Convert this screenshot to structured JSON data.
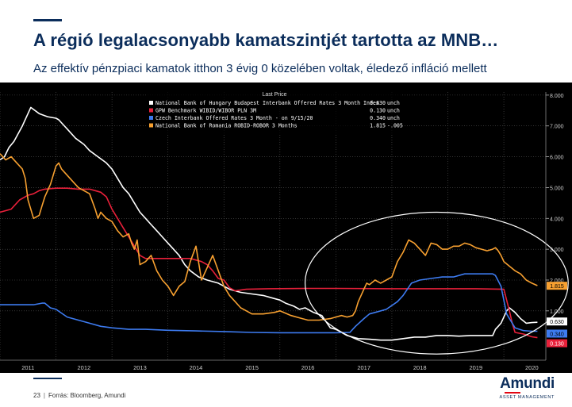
{
  "slide": {
    "title": "A régió legalacsonyabb kamatszintjét tartotta az MNB…",
    "subtitle": "Az effektív pénzpiaci kamatok itthon 3 évig 0 közelében voltak, éledező infláció mellett",
    "page_number": "23",
    "source": "Forrás: Bloomberg, Amundi",
    "logo": {
      "name": "Amundi",
      "tagline": "ASSET MANAGEMENT"
    }
  },
  "colors": {
    "brand": "#0b2d5b",
    "chart_bg": "#000000",
    "grid": "#555555",
    "series_white": "#ffffff",
    "series_red": "#e8203a",
    "series_blue": "#3d7bf0",
    "series_orange": "#f7a030"
  },
  "chart_data": {
    "type": "line",
    "title": "",
    "xlabel": "",
    "ylabel": "",
    "legend": {
      "heading": "Last Price",
      "placement": "top-center",
      "entries": [
        {
          "label": "National Bank of Hungary Budapest Interbank Offered Rates 3 Month Index",
          "value": "0.630",
          "unit": "unch",
          "color": "#ffffff"
        },
        {
          "label": "GPW Benchmark WIBID/WIBOR PLN 3M",
          "value": "0.130",
          "unit": "unch",
          "color": "#e8203a"
        },
        {
          "label": "Czech Interbank Offered Rates 3 Month -  on 9/15/20",
          "value": "0.340",
          "unit": "unch",
          "color": "#3d7bf0"
        },
        {
          "label": "National Bank of Romania ROBID-ROBOR 3 Months",
          "value": "1.815",
          "unit": "-.005",
          "color": "#f7a030"
        }
      ]
    },
    "x_ticks": [
      "2011",
      "2012",
      "2013",
      "2014",
      "2015",
      "2016",
      "2017",
      "2018",
      "2019",
      "2020"
    ],
    "xlim": [
      2011.0,
      2020.75
    ],
    "y_ticks": [
      "1.000",
      "2.000",
      "3.000",
      "4.000",
      "5.000",
      "6.000",
      "7.000",
      "8.000"
    ],
    "ylim": [
      -0.6,
      8.1
    ],
    "grid": true,
    "right_axis": true,
    "last_value_tags": [
      {
        "text": "1.815",
        "value": 1.815,
        "bg": "#f7a030",
        "fg": "#000000"
      },
      {
        "text": "0.630",
        "value": 0.63,
        "bg": "#ffffff",
        "fg": "#000000"
      },
      {
        "text": "0.340",
        "value": 0.34,
        "bg": "#3d7bf0",
        "fg": "#000000"
      },
      {
        "text": "0.130",
        "value": 0.13,
        "bg": "#e8203a",
        "fg": "#ffffff"
      }
    ],
    "highlight_ellipse": {
      "cx": 2018.8,
      "cy": 1.9,
      "rx": 2.35,
      "ry": 2.3
    },
    "series": [
      {
        "name": "National Bank of Hungary Budapest Interbank Offered Rates 3 Month Index",
        "color": "#ffffff",
        "x": [
          2011.0,
          2011.08,
          2011.16,
          2011.25,
          2011.4,
          2011.55,
          2011.7,
          2011.85,
          2012.0,
          2012.05,
          2012.1,
          2012.2,
          2012.35,
          2012.5,
          2012.6,
          2012.75,
          2012.9,
          2013.0,
          2013.1,
          2013.2,
          2013.3,
          2013.4,
          2013.5,
          2013.6,
          2013.7,
          2013.8,
          2013.9,
          2014.0,
          2014.1,
          2014.2,
          2014.3,
          2014.4,
          2014.55,
          2014.7,
          2014.9,
          2015.1,
          2015.3,
          2015.5,
          2015.7,
          2015.9,
          2016.0,
          2016.1,
          2016.25,
          2016.35,
          2016.45,
          2016.6,
          2016.75,
          2016.9,
          2017.0,
          2017.2,
          2017.4,
          2017.6,
          2017.8,
          2018.0,
          2018.2,
          2018.4,
          2018.6,
          2018.8,
          2019.0,
          2019.2,
          2019.4,
          2019.6,
          2019.8,
          2019.85,
          2019.9,
          2019.95,
          2020.0,
          2020.05,
          2020.1,
          2020.2,
          2020.3,
          2020.4,
          2020.5,
          2020.6
        ],
        "y": [
          5.9,
          6.0,
          6.3,
          6.5,
          7.0,
          7.6,
          7.4,
          7.3,
          7.25,
          7.2,
          7.1,
          6.9,
          6.6,
          6.4,
          6.2,
          6.0,
          5.8,
          5.6,
          5.3,
          5.0,
          4.8,
          4.5,
          4.2,
          4.0,
          3.8,
          3.6,
          3.4,
          3.2,
          3.0,
          2.8,
          2.5,
          2.3,
          2.1,
          2.0,
          1.9,
          1.7,
          1.6,
          1.55,
          1.5,
          1.4,
          1.35,
          1.25,
          1.15,
          1.05,
          1.1,
          0.95,
          0.85,
          0.45,
          0.4,
          0.2,
          0.1,
          0.08,
          0.05,
          0.05,
          0.1,
          0.15,
          0.15,
          0.2,
          0.2,
          0.18,
          0.2,
          0.2,
          0.2,
          0.4,
          0.5,
          0.6,
          0.8,
          1.0,
          1.1,
          0.95,
          0.75,
          0.6,
          0.62,
          0.63
        ]
      },
      {
        "name": "GPW Benchmark WIBID/WIBOR PLN 3M",
        "color": "#e8203a",
        "x": [
          2011.0,
          2011.2,
          2011.35,
          2011.5,
          2011.6,
          2011.7,
          2011.8,
          2012.0,
          2012.2,
          2012.4,
          2012.6,
          2012.7,
          2012.8,
          2012.9,
          2013.0,
          2013.1,
          2013.2,
          2013.3,
          2013.4,
          2013.5,
          2013.6,
          2013.8,
          2014.0,
          2014.2,
          2014.4,
          2014.6,
          2014.7,
          2014.8,
          2014.9,
          2015.0,
          2015.1,
          2015.2,
          2015.4,
          2015.8,
          2016.5,
          2017.0,
          2018.0,
          2019.0,
          2019.5,
          2019.8,
          2020.0,
          2020.1,
          2020.15,
          2020.2,
          2020.35,
          2020.5,
          2020.6
        ],
        "y": [
          4.2,
          4.3,
          4.6,
          4.75,
          4.8,
          4.9,
          4.95,
          4.98,
          4.98,
          4.95,
          4.95,
          4.9,
          4.85,
          4.7,
          4.3,
          4.0,
          3.7,
          3.4,
          3.1,
          2.8,
          2.7,
          2.7,
          2.7,
          2.7,
          2.7,
          2.6,
          2.5,
          2.3,
          2.05,
          2.0,
          1.75,
          1.65,
          1.7,
          1.72,
          1.73,
          1.73,
          1.72,
          1.72,
          1.72,
          1.71,
          1.7,
          1.0,
          0.6,
          0.3,
          0.25,
          0.16,
          0.13
        ]
      },
      {
        "name": "Czech Interbank Offered Rates 3 Month -  on 9/15/20",
        "color": "#3d7bf0",
        "x": [
          2011.0,
          2011.3,
          2011.6,
          2011.75,
          2011.8,
          2011.9,
          2012.0,
          2012.2,
          2012.4,
          2012.6,
          2012.8,
          2013.0,
          2013.3,
          2013.6,
          2014.0,
          2014.5,
          2015.0,
          2015.5,
          2016.0,
          2016.5,
          2017.0,
          2017.25,
          2017.35,
          2017.5,
          2017.6,
          2017.7,
          2017.9,
          2018.1,
          2018.2,
          2018.35,
          2018.5,
          2018.7,
          2018.9,
          2019.1,
          2019.3,
          2019.5,
          2019.7,
          2019.8,
          2019.85,
          2019.95,
          2020.05,
          2020.2,
          2020.35,
          2020.5,
          2020.6
        ],
        "y": [
          1.2,
          1.2,
          1.2,
          1.25,
          1.25,
          1.1,
          1.05,
          0.8,
          0.7,
          0.6,
          0.5,
          0.45,
          0.4,
          0.4,
          0.37,
          0.35,
          0.33,
          0.3,
          0.29,
          0.29,
          0.29,
          0.3,
          0.5,
          0.75,
          0.9,
          0.95,
          1.05,
          1.3,
          1.5,
          1.9,
          2.0,
          2.05,
          2.1,
          2.1,
          2.2,
          2.2,
          2.2,
          2.2,
          2.15,
          1.8,
          0.9,
          0.45,
          0.36,
          0.34,
          0.34
        ]
      },
      {
        "name": "National Bank of Romania ROBID-ROBOR 3 Months",
        "color": "#f7a030",
        "x": [
          2011.0,
          2011.1,
          2011.2,
          2011.3,
          2011.4,
          2011.45,
          2011.5,
          2011.55,
          2011.6,
          2011.7,
          2011.75,
          2011.8,
          2011.9,
          2012.0,
          2012.05,
          2012.1,
          2012.2,
          2012.3,
          2012.4,
          2012.5,
          2012.6,
          2012.7,
          2012.75,
          2012.8,
          2012.9,
          2013.0,
          2013.1,
          2013.2,
          2013.3,
          2013.35,
          2013.4,
          2013.45,
          2013.5,
          2013.6,
          2013.7,
          2013.8,
          2013.9,
          2014.0,
          2014.1,
          2014.2,
          2014.3,
          2014.4,
          2014.5,
          2014.6,
          2014.7,
          2014.8,
          2014.9,
          2015.0,
          2015.1,
          2015.2,
          2015.3,
          2015.4,
          2015.5,
          2015.7,
          2015.9,
          2016.0,
          2016.2,
          2016.4,
          2016.5,
          2016.7,
          2016.9,
          2017.0,
          2017.1,
          2017.2,
          2017.3,
          2017.35,
          2017.4,
          2017.5,
          2017.55,
          2017.6,
          2017.7,
          2017.8,
          2017.9,
          2018.0,
          2018.1,
          2018.2,
          2018.3,
          2018.4,
          2018.5,
          2018.6,
          2018.7,
          2018.8,
          2018.9,
          2019.0,
          2019.1,
          2019.2,
          2019.3,
          2019.4,
          2019.5,
          2019.6,
          2019.7,
          2019.8,
          2019.85,
          2019.9,
          2019.95,
          2020.0,
          2020.1,
          2020.2,
          2020.3,
          2020.4,
          2020.5,
          2020.6
        ],
        "y": [
          6.1,
          5.9,
          6.0,
          5.8,
          5.6,
          5.3,
          4.6,
          4.3,
          4.0,
          4.1,
          4.4,
          4.7,
          5.1,
          5.7,
          5.8,
          5.6,
          5.4,
          5.2,
          5.0,
          4.9,
          4.8,
          4.3,
          4.0,
          4.2,
          4.0,
          3.9,
          3.6,
          3.4,
          3.5,
          3.2,
          3.0,
          3.3,
          2.5,
          2.6,
          2.8,
          2.3,
          2.0,
          1.8,
          1.5,
          1.8,
          1.95,
          2.6,
          3.1,
          2.0,
          2.4,
          2.8,
          2.3,
          1.8,
          1.5,
          1.3,
          1.1,
          1.0,
          0.9,
          0.9,
          0.95,
          1.0,
          0.85,
          0.75,
          0.7,
          0.7,
          0.75,
          0.8,
          0.85,
          0.8,
          0.85,
          1.0,
          1.3,
          1.7,
          1.9,
          1.85,
          2.0,
          1.9,
          2.0,
          2.1,
          2.6,
          2.9,
          3.3,
          3.2,
          3.0,
          2.8,
          3.2,
          3.15,
          3.0,
          3.0,
          3.1,
          3.1,
          3.2,
          3.15,
          3.05,
          3.0,
          2.95,
          3.0,
          3.05,
          2.95,
          2.8,
          2.6,
          2.45,
          2.3,
          2.2,
          2.0,
          1.9,
          1.82
        ]
      }
    ]
  }
}
